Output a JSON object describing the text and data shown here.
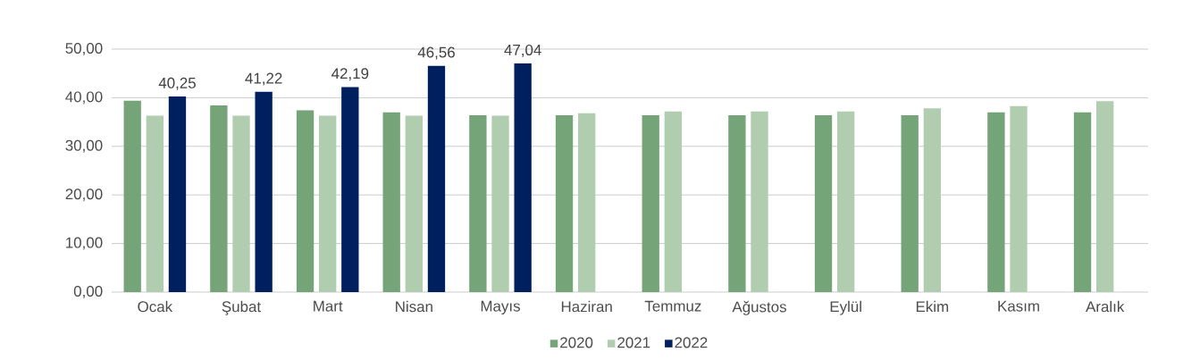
{
  "chart_data": {
    "type": "bar",
    "categories": [
      "Ocak",
      "Şubat",
      "Mart",
      "Nisan",
      "Mayıs",
      "Haziran",
      "Temmuz",
      "Ağustos",
      "Eylül",
      "Ekim",
      "Kasım",
      "Aralık"
    ],
    "series": [
      {
        "name": "2020",
        "color": "#74a478",
        "values": [
          39.4,
          38.4,
          37.4,
          37.0,
          36.4,
          36.4,
          36.4,
          36.4,
          36.4,
          36.4,
          37.0,
          37.0
        ]
      },
      {
        "name": "2021",
        "color": "#b0cdb0",
        "values": [
          36.3,
          36.3,
          36.3,
          36.3,
          36.3,
          36.8,
          37.2,
          37.2,
          37.2,
          37.8,
          38.3,
          39.3
        ]
      },
      {
        "name": "2022",
        "color": "#001f5f",
        "values": [
          40.25,
          41.22,
          42.19,
          46.56,
          47.04,
          null,
          null,
          null,
          null,
          null,
          null,
          null
        ],
        "value_labels": [
          "40,25",
          "41,22",
          "42,19",
          "46,56",
          "47,04",
          null,
          null,
          null,
          null,
          null,
          null,
          null
        ]
      }
    ],
    "ylim": [
      0,
      50
    ],
    "yticks": [
      {
        "value": 0,
        "label": "0,00"
      },
      {
        "value": 10,
        "label": "10,00"
      },
      {
        "value": 20,
        "label": "20,00"
      },
      {
        "value": 30,
        "label": "30,00"
      },
      {
        "value": 40,
        "label": "40,00"
      },
      {
        "value": 50,
        "label": "50,00"
      }
    ],
    "grid": "y",
    "legend": "bottom"
  }
}
